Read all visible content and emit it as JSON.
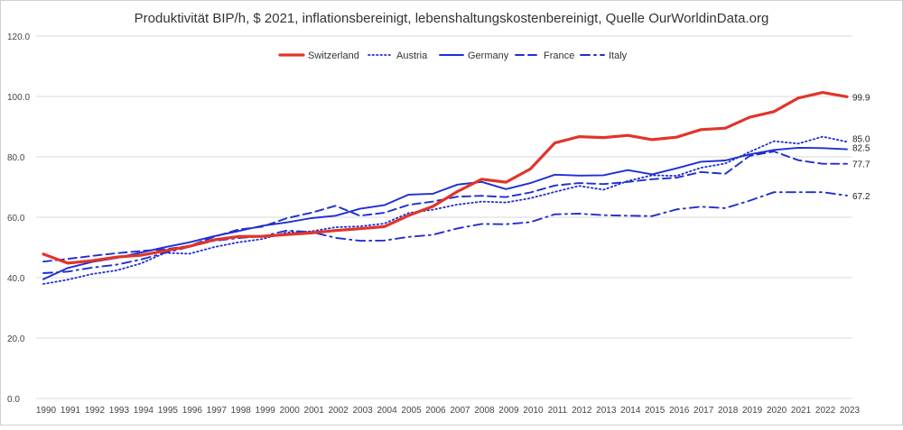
{
  "chart_data": {
    "type": "line",
    "title": "Produktivität BIP/h, $ 2021, inflationsbereinigt, lebenshaltungskostenbereinigt, Quelle OurWorldinData.org",
    "xlabel": "",
    "ylabel": "",
    "ylim": [
      0,
      120
    ],
    "yticks": [
      "0.0",
      "20.0",
      "40.0",
      "60.0",
      "80.0",
      "100.0",
      "120.0"
    ],
    "ytick_values": [
      0,
      20,
      40,
      60,
      80,
      100,
      120
    ],
    "grid": true,
    "legend_position": "top",
    "categories": [
      "1990",
      "1991",
      "1992",
      "1993",
      "1994",
      "1995",
      "1996",
      "1997",
      "1998",
      "1999",
      "2000",
      "2001",
      "2002",
      "2003",
      "2004",
      "2005",
      "2006",
      "2007",
      "2008",
      "2009",
      "2010",
      "2011",
      "2012",
      "2013",
      "2014",
      "2015",
      "2016",
      "2017",
      "2018",
      "2019",
      "2020",
      "2021",
      "2022",
      "2023"
    ],
    "series": [
      {
        "name": "Switzerland",
        "color": "#e0352b",
        "style": "solid-thick",
        "values": [
          47.8,
          44.8,
          45.6,
          46.8,
          47.4,
          48.9,
          50.4,
          52.5,
          53.6,
          53.7,
          54.3,
          54.8,
          55.6,
          56.2,
          56.9,
          60.6,
          63.6,
          68.5,
          72.6,
          71.6,
          76.0,
          84.6,
          86.7,
          86.4,
          87.1,
          85.7,
          86.5,
          89.0,
          89.5,
          93.1,
          95.0,
          99.5,
          101.3,
          99.9
        ],
        "end_label": "99.9"
      },
      {
        "name": "Austria",
        "color": "#1f2fd0",
        "style": "dotted",
        "values": [
          37.9,
          39.3,
          41.2,
          42.4,
          44.7,
          48.2,
          47.9,
          50.1,
          51.7,
          52.8,
          55.0,
          55.3,
          56.7,
          57.0,
          57.9,
          61.4,
          62.5,
          64.2,
          65.2,
          64.9,
          66.3,
          68.4,
          70.4,
          69.1,
          72.0,
          73.9,
          73.7,
          76.4,
          77.8,
          81.6,
          85.2,
          84.4,
          86.7,
          85.0
        ],
        "end_label": "85.0"
      },
      {
        "name": "Germany",
        "color": "#1f2fd0",
        "style": "solid",
        "values": [
          39.5,
          43.2,
          45.2,
          46.5,
          48.3,
          50.1,
          51.7,
          53.7,
          55.4,
          57.2,
          58.3,
          59.7,
          60.5,
          62.8,
          64.0,
          67.5,
          67.8,
          70.8,
          71.7,
          69.3,
          71.3,
          74.1,
          73.8,
          73.9,
          75.6,
          74.2,
          76.2,
          78.4,
          78.8,
          80.8,
          82.3,
          83.0,
          82.9,
          82.5
        ],
        "end_label": "82.5"
      },
      {
        "name": "France",
        "color": "#1f2fd0",
        "style": "dashed",
        "values": [
          45.3,
          46.2,
          47.2,
          48.1,
          48.8,
          49.4,
          50.5,
          53.5,
          55.9,
          56.9,
          59.7,
          61.5,
          63.8,
          60.5,
          61.5,
          64.1,
          65.2,
          66.8,
          67.1,
          66.7,
          68.2,
          70.5,
          71.3,
          71.0,
          71.7,
          72.6,
          73.1,
          75.0,
          74.4,
          80.3,
          81.8,
          78.9,
          77.7,
          77.7
        ],
        "end_label": "77.7"
      },
      {
        "name": "Italy",
        "color": "#1f2fd0",
        "style": "dashdot",
        "values": [
          41.5,
          42.0,
          43.3,
          44.3,
          46.0,
          48.2,
          50.2,
          52.2,
          53.1,
          53.7,
          55.6,
          55.1,
          53.2,
          52.2,
          52.3,
          53.5,
          54.2,
          56.3,
          57.8,
          57.7,
          58.4,
          61.0,
          61.2,
          60.7,
          60.5,
          60.4,
          62.6,
          63.5,
          63.0,
          65.5,
          68.3,
          68.3,
          68.3,
          67.2
        ],
        "end_label": "67.2"
      }
    ]
  }
}
